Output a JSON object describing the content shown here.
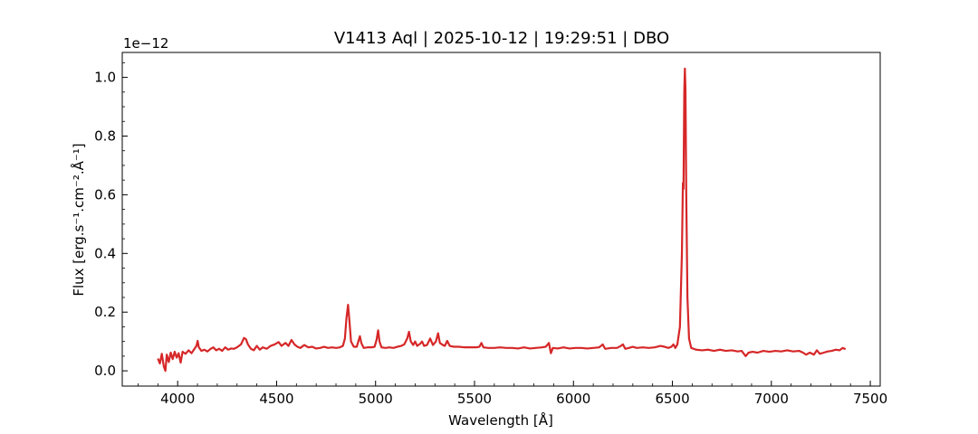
{
  "chart_data": {
    "type": "line",
    "title": "V1413 Aql | 2025-10-12 | 19:29:51 | DBO",
    "xlabel": "Wavelength [Å]",
    "ylabel": "Flux [erg.s⁻¹.cm⁻².Å⁻¹]",
    "y_offset_label": "1e−12",
    "xlim": [
      3720,
      7550
    ],
    "ylim": [
      -0.052,
      1.085
    ],
    "x_ticks": [
      4000,
      4500,
      5000,
      5500,
      6000,
      6500,
      7000,
      7500
    ],
    "x_tick_labels": [
      "4000",
      "4500",
      "5000",
      "5500",
      "6000",
      "6500",
      "7000",
      "7500"
    ],
    "y_ticks": [
      0.0,
      0.2,
      0.4,
      0.6,
      0.8,
      1.0
    ],
    "y_tick_labels": [
      "0.0",
      "0.2",
      "0.4",
      "0.6",
      "0.8",
      "1.0"
    ],
    "grid": false,
    "series": [
      {
        "color": "#d62728",
        "points": [
          [
            3900,
            0.042
          ],
          [
            3910,
            0.025
          ],
          [
            3920,
            0.058
          ],
          [
            3930,
            0.015
          ],
          [
            3938,
            0.0
          ],
          [
            3945,
            0.055
          ],
          [
            3955,
            0.03
          ],
          [
            3965,
            0.062
          ],
          [
            3975,
            0.04
          ],
          [
            3985,
            0.065
          ],
          [
            3995,
            0.045
          ],
          [
            4005,
            0.06
          ],
          [
            4015,
            0.028
          ],
          [
            4025,
            0.065
          ],
          [
            4040,
            0.058
          ],
          [
            4055,
            0.07
          ],
          [
            4070,
            0.06
          ],
          [
            4085,
            0.075
          ],
          [
            4095,
            0.085
          ],
          [
            4101,
            0.102
          ],
          [
            4107,
            0.08
          ],
          [
            4120,
            0.068
          ],
          [
            4135,
            0.072
          ],
          [
            4150,
            0.066
          ],
          [
            4165,
            0.074
          ],
          [
            4180,
            0.08
          ],
          [
            4195,
            0.07
          ],
          [
            4210,
            0.075
          ],
          [
            4225,
            0.068
          ],
          [
            4240,
            0.08
          ],
          [
            4255,
            0.072
          ],
          [
            4270,
            0.076
          ],
          [
            4285,
            0.075
          ],
          [
            4300,
            0.08
          ],
          [
            4320,
            0.09
          ],
          [
            4335,
            0.112
          ],
          [
            4345,
            0.108
          ],
          [
            4355,
            0.09
          ],
          [
            4370,
            0.075
          ],
          [
            4385,
            0.07
          ],
          [
            4400,
            0.085
          ],
          [
            4415,
            0.072
          ],
          [
            4430,
            0.08
          ],
          [
            4450,
            0.075
          ],
          [
            4470,
            0.085
          ],
          [
            4490,
            0.09
          ],
          [
            4510,
            0.098
          ],
          [
            4525,
            0.085
          ],
          [
            4545,
            0.095
          ],
          [
            4560,
            0.085
          ],
          [
            4575,
            0.105
          ],
          [
            4590,
            0.09
          ],
          [
            4605,
            0.082
          ],
          [
            4620,
            0.078
          ],
          [
            4640,
            0.088
          ],
          [
            4660,
            0.08
          ],
          [
            4680,
            0.082
          ],
          [
            4700,
            0.076
          ],
          [
            4720,
            0.078
          ],
          [
            4740,
            0.082
          ],
          [
            4760,
            0.078
          ],
          [
            4780,
            0.08
          ],
          [
            4800,
            0.078
          ],
          [
            4820,
            0.08
          ],
          [
            4835,
            0.085
          ],
          [
            4845,
            0.11
          ],
          [
            4853,
            0.18
          ],
          [
            4861,
            0.225
          ],
          [
            4868,
            0.17
          ],
          [
            4876,
            0.1
          ],
          [
            4890,
            0.082
          ],
          [
            4905,
            0.082
          ],
          [
            4915,
            0.105
          ],
          [
            4921,
            0.118
          ],
          [
            4928,
            0.095
          ],
          [
            4940,
            0.078
          ],
          [
            4960,
            0.08
          ],
          [
            4980,
            0.08
          ],
          [
            4995,
            0.082
          ],
          [
            5005,
            0.105
          ],
          [
            5013,
            0.138
          ],
          [
            5020,
            0.1
          ],
          [
            5030,
            0.08
          ],
          [
            5050,
            0.078
          ],
          [
            5070,
            0.08
          ],
          [
            5090,
            0.078
          ],
          [
            5110,
            0.082
          ],
          [
            5130,
            0.085
          ],
          [
            5145,
            0.09
          ],
          [
            5160,
            0.11
          ],
          [
            5169,
            0.133
          ],
          [
            5178,
            0.1
          ],
          [
            5190,
            0.088
          ],
          [
            5200,
            0.1
          ],
          [
            5210,
            0.085
          ],
          [
            5225,
            0.092
          ],
          [
            5235,
            0.1
          ],
          [
            5245,
            0.085
          ],
          [
            5260,
            0.088
          ],
          [
            5276,
            0.11
          ],
          [
            5290,
            0.088
          ],
          [
            5305,
            0.1
          ],
          [
            5316,
            0.128
          ],
          [
            5325,
            0.095
          ],
          [
            5340,
            0.088
          ],
          [
            5350,
            0.085
          ],
          [
            5362,
            0.102
          ],
          [
            5375,
            0.085
          ],
          [
            5395,
            0.082
          ],
          [
            5420,
            0.082
          ],
          [
            5450,
            0.08
          ],
          [
            5480,
            0.08
          ],
          [
            5510,
            0.08
          ],
          [
            5525,
            0.082
          ],
          [
            5535,
            0.095
          ],
          [
            5545,
            0.08
          ],
          [
            5570,
            0.078
          ],
          [
            5600,
            0.078
          ],
          [
            5630,
            0.08
          ],
          [
            5660,
            0.078
          ],
          [
            5690,
            0.078
          ],
          [
            5720,
            0.076
          ],
          [
            5750,
            0.08
          ],
          [
            5780,
            0.076
          ],
          [
            5810,
            0.078
          ],
          [
            5840,
            0.08
          ],
          [
            5860,
            0.082
          ],
          [
            5876,
            0.095
          ],
          [
            5886,
            0.06
          ],
          [
            5896,
            0.078
          ],
          [
            5920,
            0.076
          ],
          [
            5950,
            0.08
          ],
          [
            5980,
            0.076
          ],
          [
            6010,
            0.078
          ],
          [
            6040,
            0.078
          ],
          [
            6070,
            0.076
          ],
          [
            6100,
            0.078
          ],
          [
            6130,
            0.08
          ],
          [
            6148,
            0.09
          ],
          [
            6160,
            0.075
          ],
          [
            6190,
            0.078
          ],
          [
            6220,
            0.078
          ],
          [
            6240,
            0.085
          ],
          [
            6250,
            0.09
          ],
          [
            6262,
            0.075
          ],
          [
            6280,
            0.078
          ],
          [
            6300,
            0.082
          ],
          [
            6320,
            0.078
          ],
          [
            6350,
            0.08
          ],
          [
            6380,
            0.078
          ],
          [
            6410,
            0.08
          ],
          [
            6440,
            0.085
          ],
          [
            6460,
            0.082
          ],
          [
            6480,
            0.078
          ],
          [
            6495,
            0.082
          ],
          [
            6505,
            0.09
          ],
          [
            6515,
            0.078
          ],
          [
            6525,
            0.09
          ],
          [
            6538,
            0.15
          ],
          [
            6548,
            0.4
          ],
          [
            6553,
            0.64
          ],
          [
            6556,
            0.62
          ],
          [
            6560,
            0.95
          ],
          [
            6563,
            1.03
          ],
          [
            6566,
            0.96
          ],
          [
            6570,
            0.6
          ],
          [
            6576,
            0.25
          ],
          [
            6584,
            0.11
          ],
          [
            6595,
            0.078
          ],
          [
            6620,
            0.072
          ],
          [
            6650,
            0.07
          ],
          [
            6680,
            0.072
          ],
          [
            6710,
            0.068
          ],
          [
            6740,
            0.072
          ],
          [
            6770,
            0.068
          ],
          [
            6800,
            0.07
          ],
          [
            6830,
            0.066
          ],
          [
            6850,
            0.068
          ],
          [
            6870,
            0.05
          ],
          [
            6885,
            0.062
          ],
          [
            6905,
            0.065
          ],
          [
            6930,
            0.062
          ],
          [
            6960,
            0.068
          ],
          [
            6990,
            0.065
          ],
          [
            7020,
            0.068
          ],
          [
            7050,
            0.066
          ],
          [
            7080,
            0.07
          ],
          [
            7110,
            0.066
          ],
          [
            7140,
            0.068
          ],
          [
            7160,
            0.062
          ],
          [
            7175,
            0.055
          ],
          [
            7195,
            0.062
          ],
          [
            7215,
            0.055
          ],
          [
            7230,
            0.07
          ],
          [
            7245,
            0.058
          ],
          [
            7265,
            0.062
          ],
          [
            7285,
            0.066
          ],
          [
            7305,
            0.068
          ],
          [
            7325,
            0.072
          ],
          [
            7345,
            0.07
          ],
          [
            7360,
            0.078
          ],
          [
            7375,
            0.074
          ]
        ]
      }
    ]
  }
}
